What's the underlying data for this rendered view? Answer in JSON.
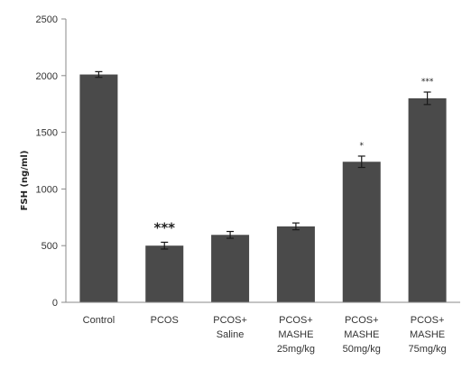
{
  "chart_data": {
    "type": "bar",
    "title": "",
    "xlabel": "",
    "ylabel": "FSH (ng/ml)",
    "ylim": [
      0,
      2500
    ],
    "yticks": [
      0,
      500,
      1000,
      1500,
      2000,
      2500
    ],
    "grid": false,
    "bar_color": "#4a4a4a",
    "categories": [
      [
        "Control"
      ],
      [
        "PCOS"
      ],
      [
        "PCOS+",
        "Saline"
      ],
      [
        "PCOS+",
        "MASHE",
        "25mg/kg"
      ],
      [
        "PCOS+",
        "MASHE",
        "50mg/kg"
      ],
      [
        "PCOS+",
        "MASHE",
        "75mg/kg"
      ]
    ],
    "values": [
      2010,
      500,
      595,
      670,
      1240,
      1800
    ],
    "errors": [
      25,
      30,
      30,
      30,
      50,
      55
    ],
    "significance": [
      "",
      "***",
      "",
      "",
      "*",
      "***"
    ]
  }
}
